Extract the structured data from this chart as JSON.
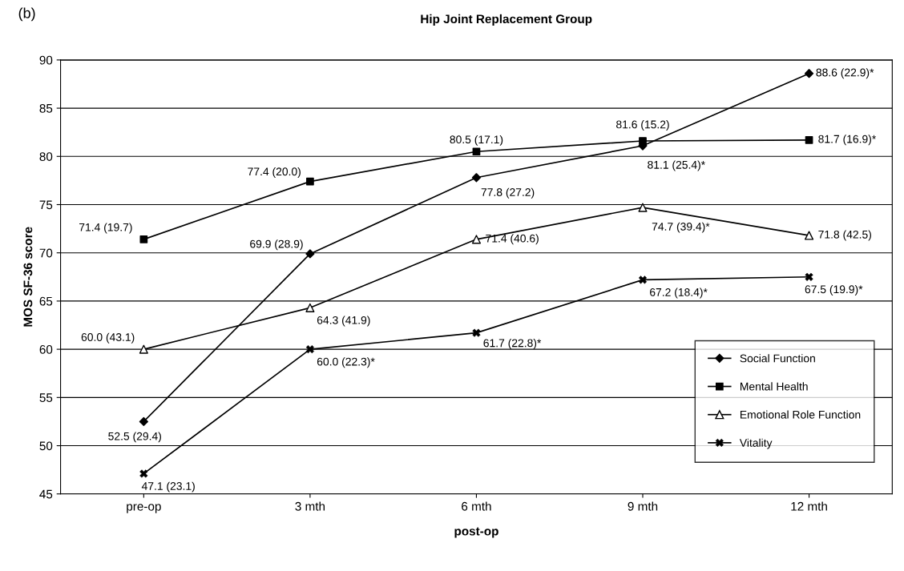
{
  "chart_data": {
    "type": "line",
    "title": "Hip Joint Replacement Group",
    "xlabel": "post-op",
    "ylabel": "MOS SF-36 score",
    "annotations": [
      "(b)"
    ],
    "categories": [
      "pre-op",
      "3 mth",
      "6 mth",
      "9 mth",
      "12 mth"
    ],
    "ylim": [
      45,
      90
    ],
    "yticks": [
      45,
      50,
      55,
      60,
      65,
      70,
      75,
      80,
      85,
      90
    ],
    "grid": "y",
    "legend": "bottom right",
    "line_style": "solid",
    "series": [
      {
        "name": "Social Function",
        "color": "#000000",
        "marker": "diamond",
        "values": [
          52.5,
          69.9,
          77.8,
          81.1,
          88.6
        ],
        "value_labels": [
          "52.5 (29.4)",
          "69.9 (28.9)",
          "77.8 (27.2)",
          "81.1 (25.4)*",
          "88.6 (22.9)*"
        ]
      },
      {
        "name": "Mental Health",
        "color": "#000000",
        "marker": "square",
        "values": [
          71.4,
          77.4,
          80.5,
          81.6,
          81.7
        ],
        "value_labels": [
          "71.4 (19.7)",
          "77.4 (20.0)",
          "80.5 (17.1)",
          "81.6 (15.2)",
          "81.7 (16.9)*"
        ]
      },
      {
        "name": "Emotional Role Function",
        "color": "#000000",
        "marker": "triangle",
        "values": [
          60.0,
          64.3,
          71.4,
          74.7,
          71.8
        ],
        "value_labels": [
          "60.0 (43.1)",
          "64.3 (41.9)",
          "71.4 (40.6)",
          "74.7 (39.4)*",
          "71.8 (42.5)"
        ]
      },
      {
        "name": "Vitality",
        "color": "#000000",
        "marker": "cross",
        "values": [
          47.1,
          60.0,
          61.7,
          67.2,
          67.5
        ],
        "value_labels": [
          "47.1 (23.1)",
          "60.0 (22.3)*",
          "61.7 (22.8)*",
          "67.2 (18.4)*",
          "67.5 (19.9)*"
        ]
      }
    ]
  }
}
